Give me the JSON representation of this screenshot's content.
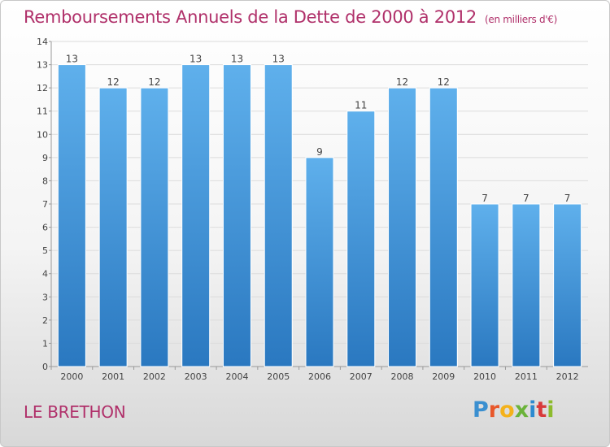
{
  "chart_data": {
    "type": "bar",
    "title": "Remboursements Annuels de la Dette de 2000 à 2012",
    "unit_note": "(en milliers d'€)",
    "categories": [
      "2000",
      "2001",
      "2002",
      "2003",
      "2004",
      "2005",
      "2006",
      "2007",
      "2008",
      "2009",
      "2010",
      "2011",
      "2012"
    ],
    "values": [
      13,
      12,
      12,
      13,
      13,
      13,
      9,
      11,
      12,
      12,
      7,
      7,
      7
    ],
    "y_ticks": [
      0,
      1,
      2,
      3,
      4,
      5,
      6,
      7,
      8,
      9,
      10,
      11,
      12,
      13,
      14
    ],
    "ylim": [
      0,
      14
    ],
    "xlabel": "",
    "ylabel": "",
    "bar_color": "#3c8fd6",
    "grid": true
  },
  "footer": {
    "commune": "LE BRETHON",
    "logo_letters": [
      "P",
      "r",
      "o",
      "x",
      "i",
      "t",
      "i"
    ]
  }
}
